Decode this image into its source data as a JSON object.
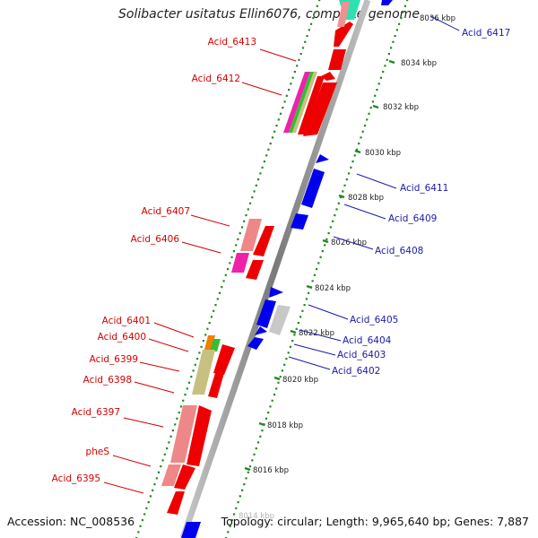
{
  "title": "Solibacter usitatus Ellin6076, complete genome",
  "accession": "Accession: NC_008536",
  "topology": "Topology: circular; Length: 9,965,640 bp; Genes: 7,887",
  "ticks": [
    {
      "label": "8036 kbp"
    },
    {
      "label": "8034 kbp"
    },
    {
      "label": "8032 kbp"
    },
    {
      "label": "8030 kbp"
    },
    {
      "label": "8028 kbp"
    },
    {
      "label": "8026 kbp"
    },
    {
      "label": "8024 kbp"
    },
    {
      "label": "8022 kbp"
    },
    {
      "label": "8020 kbp"
    },
    {
      "label": "8018 kbp"
    },
    {
      "label": "8016 kbp"
    },
    {
      "label": "8014 kbp"
    }
  ],
  "left_labels": [
    {
      "text": "Acid_6413"
    },
    {
      "text": "Acid_6412"
    },
    {
      "text": "Acid_6407"
    },
    {
      "text": "Acid_6406"
    },
    {
      "text": "Acid_6401"
    },
    {
      "text": "Acid_6400"
    },
    {
      "text": "Acid_6399"
    },
    {
      "text": "Acid_6398"
    },
    {
      "text": "Acid_6397"
    },
    {
      "text": "pheS"
    },
    {
      "text": "Acid_6395"
    }
  ],
  "right_labels": [
    {
      "text": "Acid_6417"
    },
    {
      "text": "Acid_6411"
    },
    {
      "text": "Acid_6409"
    },
    {
      "text": "Acid_6408"
    },
    {
      "text": "Acid_6405"
    },
    {
      "text": "Acid_6404"
    },
    {
      "text": "Acid_6403"
    },
    {
      "text": "Acid_6402"
    }
  ],
  "colors": {
    "forward": "#ee0000",
    "forward_light": "#ee8888",
    "reverse": "#0000ee",
    "backbone": "#888888",
    "ring_dots": "#228822",
    "magenta": "#ee22aa",
    "olive": "#c8c080",
    "gray_feature": "#c8c8c8",
    "teal": "#30e0b0",
    "orange": "#f08000",
    "green": "#30c030",
    "pink": "#ff44aa"
  }
}
